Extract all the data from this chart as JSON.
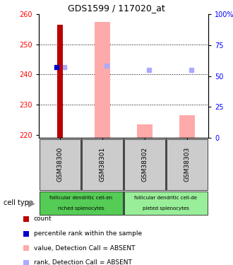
{
  "title": "GDS1599 / 117020_at",
  "samples": [
    "GSM38300",
    "GSM38301",
    "GSM38302",
    "GSM38303"
  ],
  "ylim_left": [
    219,
    260
  ],
  "ylim_right": [
    0,
    100
  ],
  "yticks_left": [
    220,
    230,
    240,
    250,
    260
  ],
  "yticks_right": [
    0,
    25,
    50,
    75,
    100
  ],
  "ytick_labels_right": [
    "0",
    "25",
    "50",
    "75",
    "100%"
  ],
  "bar_bottom": 219,
  "count_bar": {
    "sample": 0,
    "value": 256.5,
    "color": "#bb0000"
  },
  "percentile_bar": {
    "sample": 0,
    "value": 242.5,
    "color": "#0000cc"
  },
  "pink_bars": [
    {
      "sample": 1,
      "value": 257.5,
      "color": "#ffaaaa"
    },
    {
      "sample": 2,
      "value": 223.5,
      "color": "#ffaaaa"
    },
    {
      "sample": 3,
      "value": 226.5,
      "color": "#ffaaaa"
    }
  ],
  "rank_markers": [
    {
      "sample": 0,
      "value": 242.5,
      "color": "#aaaaff"
    },
    {
      "sample": 1,
      "value": 243.0,
      "color": "#aaaaff"
    },
    {
      "sample": 2,
      "value": 241.5,
      "color": "#aaaaff"
    },
    {
      "sample": 3,
      "value": 241.5,
      "color": "#aaaaff"
    }
  ],
  "cell_groups": [
    {
      "label_top": "follicular dendritic cell-en",
      "label_bot": "riched splenocytes",
      "samples": [
        0,
        1
      ],
      "color": "#55cc55"
    },
    {
      "label_top": "follicular dendritic cell-de",
      "label_bot": "pleted splenocytes",
      "samples": [
        2,
        3
      ],
      "color": "#99ee99"
    }
  ],
  "legend_items": [
    {
      "label": "count",
      "color": "#bb0000"
    },
    {
      "label": "percentile rank within the sample",
      "color": "#0000cc"
    },
    {
      "label": "value, Detection Call = ABSENT",
      "color": "#ffaaaa"
    },
    {
      "label": "rank, Detection Call = ABSENT",
      "color": "#aaaaff"
    }
  ],
  "cell_type_label": "cell type",
  "gridline_values": [
    230,
    240,
    250
  ],
  "count_bar_width": 0.13,
  "pink_bar_width": 0.38
}
